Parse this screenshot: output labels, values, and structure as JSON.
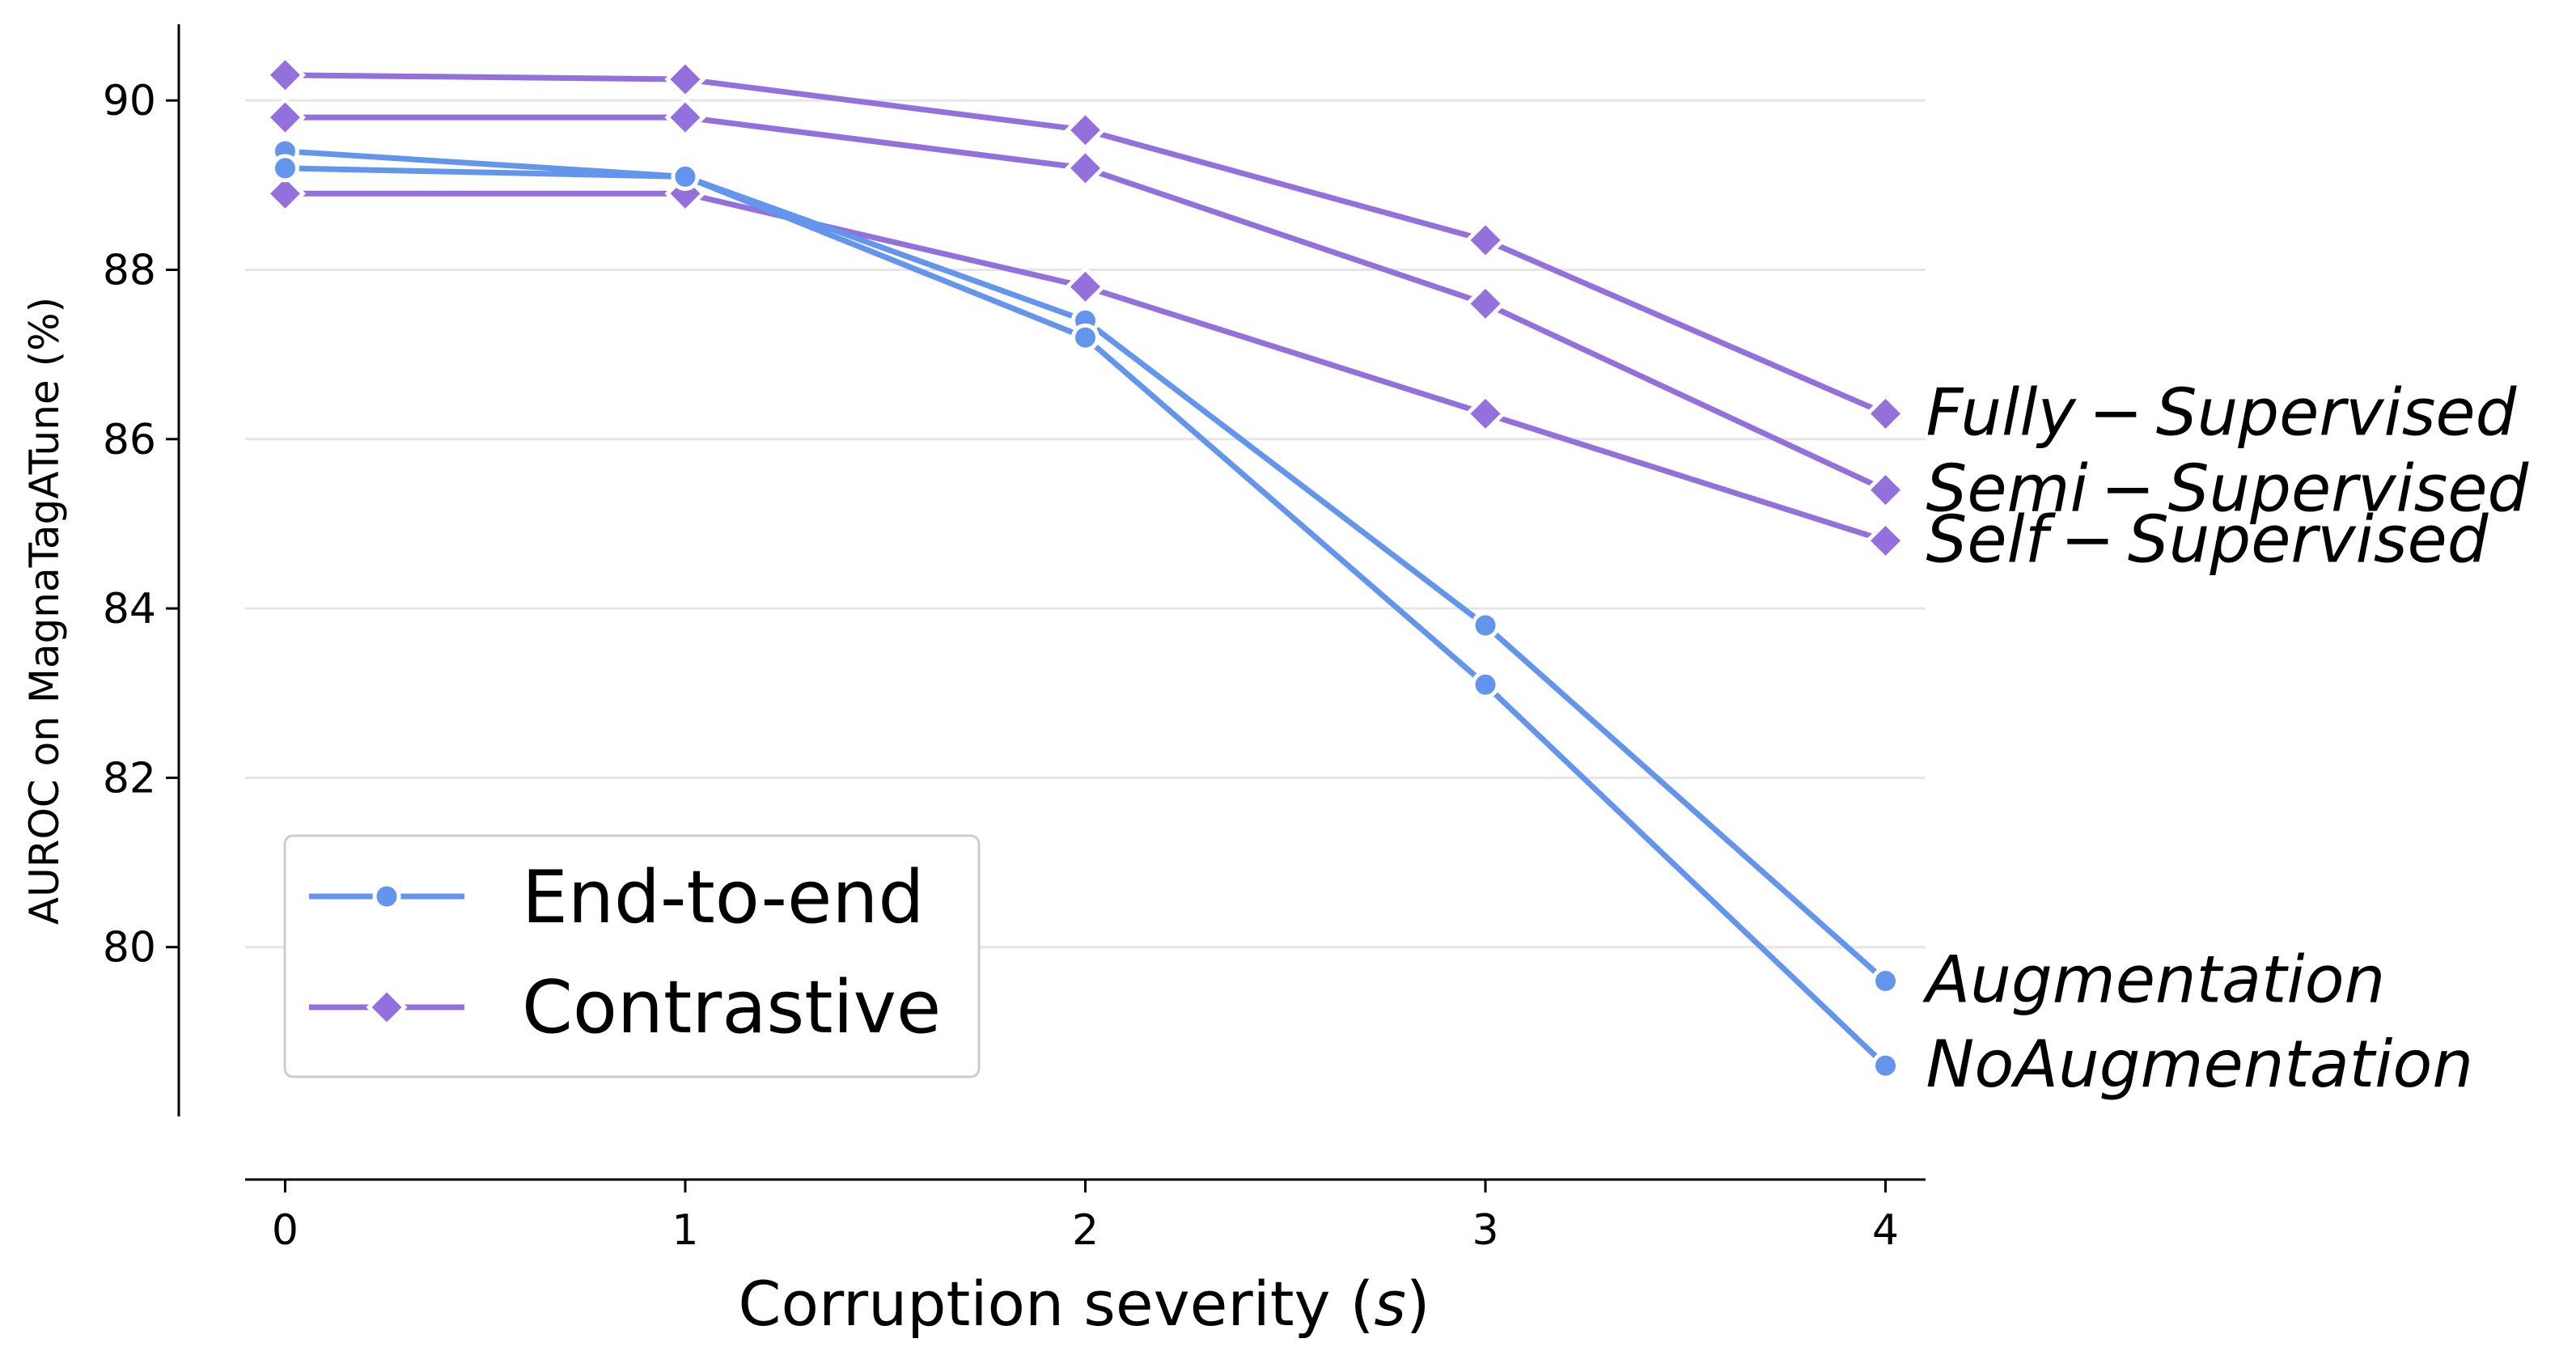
{
  "chart_data": {
    "type": "line",
    "xlabel_prefix": "Corruption severity (",
    "xlabel_var": "s",
    "xlabel_suffix": ")",
    "ylabel": "AUROC on MagnaTagATune (%)",
    "x": [
      0,
      1,
      2,
      3,
      4
    ],
    "xticks": [
      "0",
      "1",
      "2",
      "3",
      "4"
    ],
    "yticks": [
      "80",
      "82",
      "84",
      "86",
      "88",
      "90"
    ],
    "ytick_values": [
      80,
      82,
      84,
      86,
      88,
      90
    ],
    "xlim": [
      -0.1,
      4.1
    ],
    "ylim": [
      78,
      90.9
    ],
    "grid": "horizontal",
    "legend_placement": "lower-left",
    "colors": {
      "end_to_end": "#6495ED",
      "contrastive": "#9370DB"
    },
    "legend": [
      {
        "label": "End-to-end",
        "marker": "circle",
        "color": "#6495ED"
      },
      {
        "label": "Contrastive",
        "marker": "diamond",
        "color": "#9370DB"
      }
    ],
    "series": [
      {
        "name": "Fully − Supervised",
        "group": "Contrastive",
        "marker": "diamond",
        "color": "#9370DB",
        "values": [
          90.3,
          90.25,
          89.65,
          88.35,
          86.3
        ]
      },
      {
        "name": "Semi − Supervised",
        "group": "Contrastive",
        "marker": "diamond",
        "color": "#9370DB",
        "values": [
          89.8,
          89.8,
          89.2,
          87.6,
          85.4
        ]
      },
      {
        "name": "Self − Supervised",
        "group": "Contrastive",
        "marker": "diamond",
        "color": "#9370DB",
        "values": [
          88.9,
          88.9,
          87.8,
          86.3,
          84.8
        ]
      },
      {
        "name": "Augmentation",
        "group": "End-to-end",
        "marker": "circle",
        "color": "#6495ED",
        "values": [
          89.4,
          89.1,
          87.4,
          83.8,
          79.6
        ]
      },
      {
        "name": "NoAugmentation",
        "group": "End-to-end",
        "marker": "circle",
        "color": "#6495ED",
        "values": [
          89.2,
          89.1,
          87.2,
          83.1,
          78.6
        ]
      }
    ]
  }
}
